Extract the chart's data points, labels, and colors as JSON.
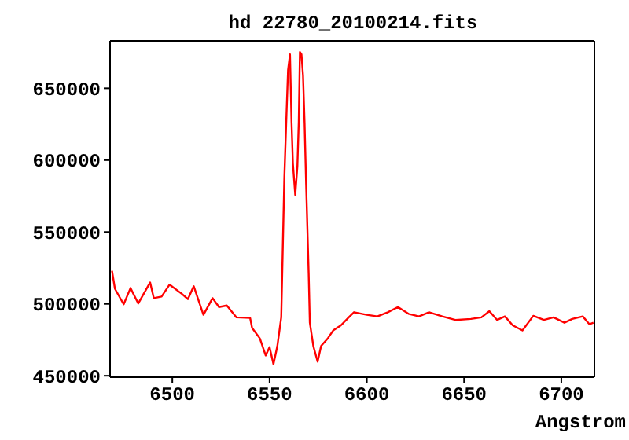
{
  "chart_data": {
    "type": "line",
    "title": "hd 22780_20100214.fits",
    "xlabel": "Angstrom",
    "x": [
      6469,
      6470.5,
      6475,
      6478.5,
      6482.5,
      6488.6,
      6490.5,
      6494.5,
      6498.6,
      6505,
      6508,
      6511,
      6516,
      6520.7,
      6524,
      6528,
      6533,
      6540,
      6541,
      6545,
      6548,
      6550,
      6552,
      6554,
      6556,
      6557.6,
      6558.7,
      6559.5,
      6560.5,
      6561.3,
      6562,
      6563.2,
      6564.3,
      6565,
      6565.6,
      6566.4,
      6567.2,
      6568,
      6568.8,
      6570.1,
      6570.7,
      6572.5,
      6574.7,
      6576.5,
      6580,
      6582.7,
      6586.7,
      6590.7,
      6593.4,
      6600,
      6605.4,
      6610.8,
      6616,
      6621.4,
      6626.8,
      6632,
      6638.8,
      6645.5,
      6653.5,
      6658.9,
      6663,
      6667,
      6671,
      6675,
      6680,
      6685.6,
      6691,
      6696,
      6701.6,
      6705.6,
      6711,
      6714.4,
      6716.5
    ],
    "series": [
      {
        "color": "#ff0000",
        "values": [
          523000,
          510500,
          499700,
          511000,
          500300,
          514900,
          504000,
          505100,
          513400,
          506900,
          503300,
          512300,
          492400,
          504000,
          497800,
          498900,
          490600,
          490200,
          483300,
          476000,
          464100,
          469900,
          458000,
          470700,
          490600,
          588000,
          631900,
          662700,
          673600,
          626400,
          597500,
          575800,
          595700,
          626400,
          675300,
          673600,
          659000,
          625800,
          583100,
          521400,
          486900,
          470700,
          459800,
          470700,
          476100,
          481500,
          485100,
          490600,
          494200,
          492400,
          491300,
          494200,
          497800,
          493100,
          491300,
          494200,
          491300,
          488800,
          489500,
          490600,
          494900,
          488800,
          491300,
          485100,
          481500,
          491700,
          488800,
          490600,
          486900,
          489500,
          491300,
          485900,
          486900
        ]
      }
    ],
    "xlim": [
      6468,
      6717
    ],
    "xticks": [
      6500,
      6550,
      6600,
      6650,
      6700
    ],
    "ylim": [
      449000,
      683000
    ],
    "yticks": [
      450000,
      500000,
      550000,
      600000,
      650000
    ],
    "grid": false,
    "legend": false,
    "marker": "none",
    "line_style": "solid"
  }
}
